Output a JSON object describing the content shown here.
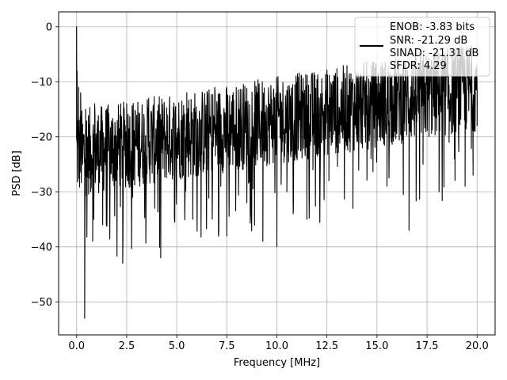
{
  "chart_data": {
    "type": "line",
    "title": "",
    "xlabel": "Frequency [MHz]",
    "ylabel": "PSD [dB]",
    "xlim": [
      -0.9,
      20.9
    ],
    "ylim": [
      -56,
      2.7
    ],
    "xticks": [
      0.0,
      2.5,
      5.0,
      7.5,
      10.0,
      12.5,
      15.0,
      17.5,
      20.0
    ],
    "xtick_labels": [
      "0.0",
      "2.5",
      "5.0",
      "7.5",
      "10.0",
      "12.5",
      "15.0",
      "17.5",
      "20.0"
    ],
    "yticks": [
      0,
      -10,
      -20,
      -30,
      -40,
      -50
    ],
    "ytick_labels": [
      "0",
      "−10",
      "−20",
      "−30",
      "−40",
      "−50"
    ],
    "grid": true,
    "legend": {
      "placement": "top-right",
      "entries": [
        "ENOB: -3.83 bits",
        "SNR: -21.29 dB",
        "SINAD: -21.31 dB",
        "SFDR: 4.29"
      ]
    },
    "series": [
      {
        "color": "#000000",
        "description": "Dense noise-like PSD trace; values approximate the envelope",
        "x": [
          0.0,
          0.02,
          0.05,
          0.1,
          0.15,
          0.2,
          0.3,
          0.4,
          0.45,
          0.55,
          0.7,
          0.8,
          0.9,
          1.0,
          1.2,
          1.3,
          1.5,
          1.8,
          2.0,
          2.3,
          2.35,
          2.5,
          2.8,
          3.0,
          3.3,
          3.6,
          3.9,
          4.2,
          4.5,
          4.8,
          5.2,
          5.5,
          5.8,
          6.2,
          6.5,
          6.9,
          7.2,
          7.5,
          7.8,
          8.1,
          8.5,
          8.9,
          9.1,
          9.3,
          9.6,
          10.0,
          10.15,
          10.5,
          10.9,
          11.2,
          11.5,
          11.8,
          12.2,
          12.6,
          13.0,
          13.4,
          13.8,
          14.3,
          14.7,
          15.1,
          15.5,
          15.9,
          16.3,
          16.6,
          16.9,
          17.3,
          17.7,
          18.1,
          18.6,
          19.0,
          19.4,
          19.8,
          20.0
        ],
        "y": [
          0,
          -8,
          -17,
          -11,
          -21,
          -12,
          -25,
          -53,
          -15,
          -22,
          -30,
          -39,
          -14,
          -26,
          -20,
          -36,
          -15,
          -28,
          -22,
          -43,
          -18,
          -14,
          -31,
          -19,
          -24,
          -13,
          -33,
          -42,
          -16,
          -27,
          -21,
          -12,
          -35,
          -17,
          -25,
          -11,
          -29,
          -38,
          -20,
          -15,
          -32,
          -24,
          -14,
          -39,
          -18,
          -40,
          -12,
          -30,
          -22,
          -14,
          -35,
          -26,
          -13,
          -28,
          -20,
          -11,
          -33,
          -16,
          -24,
          -12,
          -29,
          -19,
          -10,
          -37,
          -16,
          -25,
          -11,
          -30,
          -21,
          -13,
          -29,
          -15,
          -18
        ]
      }
    ]
  }
}
